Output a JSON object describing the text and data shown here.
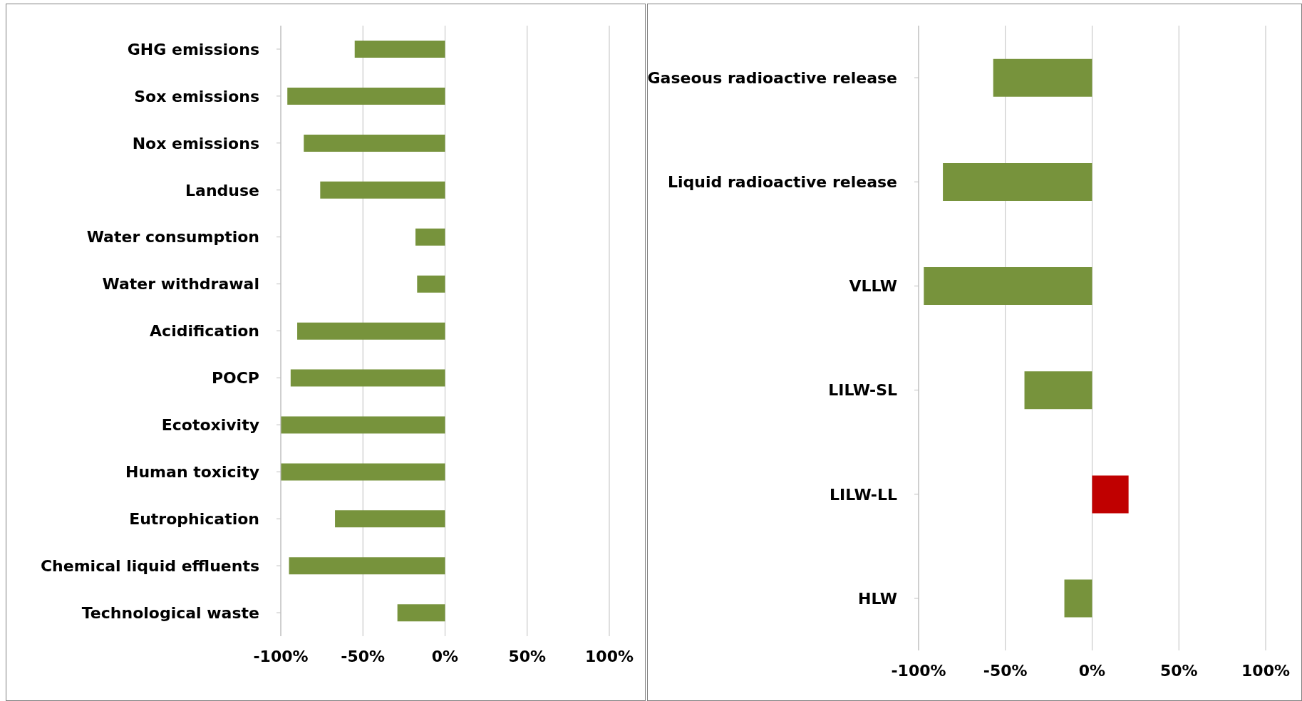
{
  "chart_data": [
    {
      "type": "bar",
      "orientation": "horizontal",
      "categories": [
        "GHG emissions",
        "Sox emissions",
        "Nox emissions",
        "Landuse",
        "Water consumption",
        "Water withdrawal",
        "Acidification",
        "POCP",
        "Ecotoxivity",
        "Human toxicity",
        "Eutrophication",
        "Chemical liquid effluents",
        "Technological waste"
      ],
      "values": [
        -55,
        -96,
        -86,
        -76,
        -18,
        -17,
        -90,
        -94,
        -100,
        -100,
        -67,
        -95,
        -29
      ],
      "color": "#77933c",
      "xlim": [
        -100,
        100
      ],
      "xticks": [
        {
          "value": -100,
          "label": "-100%"
        },
        {
          "value": -50,
          "label": "-50%"
        },
        {
          "value": 0,
          "label": "0%"
        },
        {
          "value": 50,
          "label": "50%"
        },
        {
          "value": 100,
          "label": "100%"
        }
      ],
      "grid": "x"
    },
    {
      "type": "bar",
      "orientation": "horizontal",
      "categories": [
        "Gaseous radioactive release",
        "Liquid radioactive release",
        "VLLW",
        "LILW-SL",
        "LILW-LL",
        "HLW"
      ],
      "values": [
        -57,
        -86,
        -97,
        -39,
        21,
        -16
      ],
      "colors": [
        "#77933c",
        "#77933c",
        "#77933c",
        "#77933c",
        "#c00000",
        "#77933c"
      ],
      "xlim": [
        -100,
        100
      ],
      "xticks": [
        {
          "value": -100,
          "label": "-100%"
        },
        {
          "value": -50,
          "label": "-50%"
        },
        {
          "value": 0,
          "label": "0%"
        },
        {
          "value": 50,
          "label": "50%"
        },
        {
          "value": 100,
          "label": "100%"
        }
      ],
      "grid": "x"
    }
  ]
}
